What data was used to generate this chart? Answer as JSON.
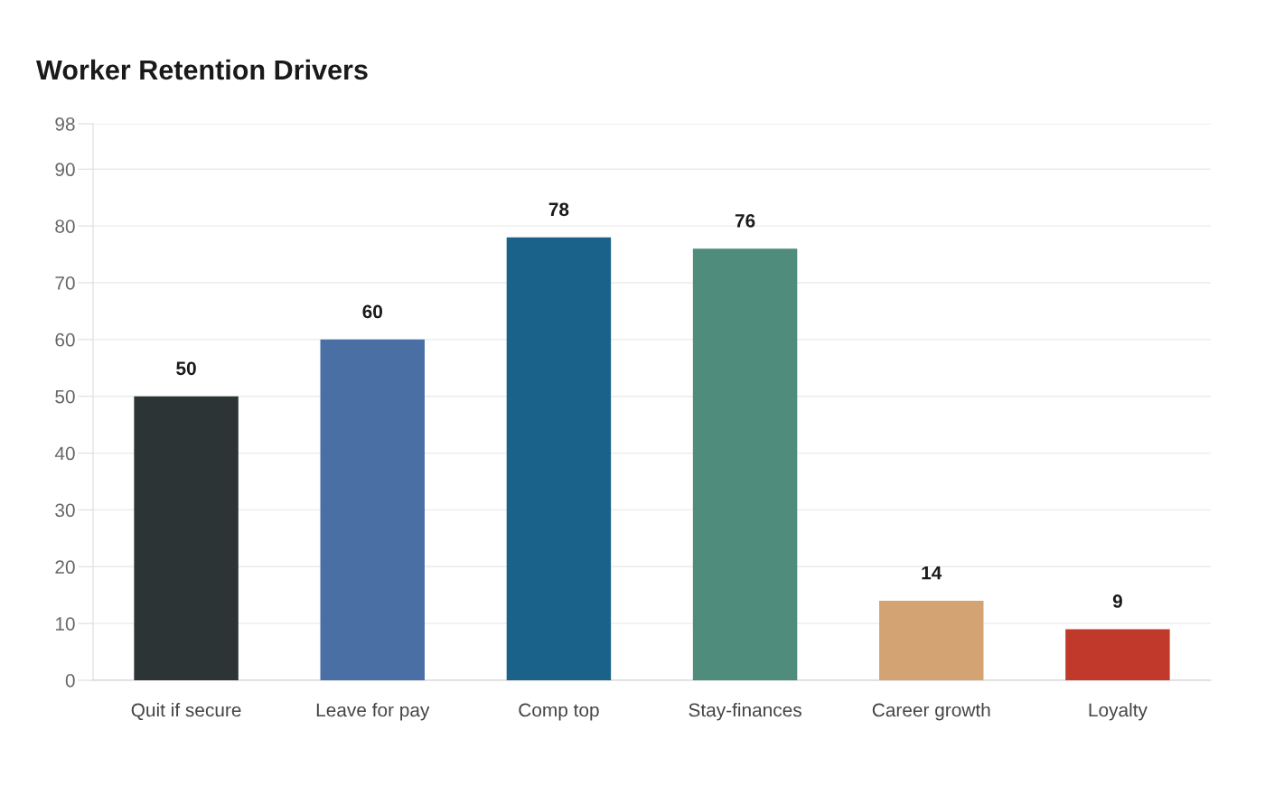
{
  "chart_data": {
    "type": "bar",
    "title": "Worker Retention Drivers",
    "categories": [
      "Quit if secure",
      "Leave for pay",
      "Comp top",
      "Stay-finances",
      "Career growth",
      "Loyalty"
    ],
    "values": [
      50,
      60,
      78,
      76,
      14,
      9
    ],
    "colors": [
      "#2d3436",
      "#4a6fa5",
      "#1a6289",
      "#4f8c7b",
      "#d4a373",
      "#c0392b"
    ],
    "ylim": [
      0,
      98
    ],
    "yticks": [
      0,
      10,
      20,
      30,
      40,
      50,
      60,
      70,
      80,
      90,
      98
    ],
    "grid": "y",
    "data_labels": true
  }
}
